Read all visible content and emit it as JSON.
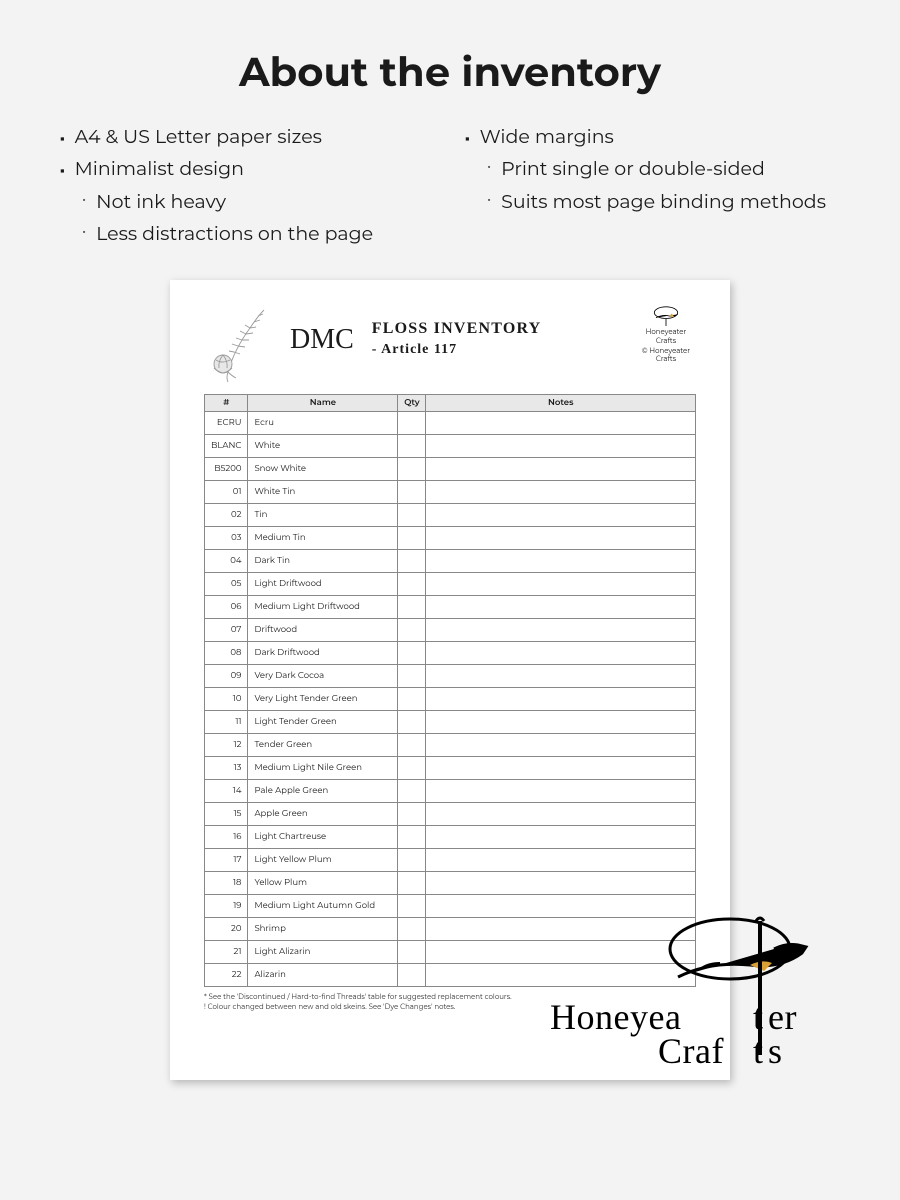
{
  "page": {
    "heading": "About the inventory",
    "background_color": "#f3f3f3"
  },
  "features": {
    "col1": {
      "item1": "A4 & US Letter paper sizes",
      "item2": "Minimalist design",
      "sub1": "Not ink heavy",
      "sub2": "Less distractions on the page"
    },
    "col2": {
      "item1": "Wide margins",
      "sub1": "Print single or double-sided",
      "sub2": "Suits most page binding methods"
    }
  },
  "document": {
    "script_brand": "DMC",
    "title": "Floss Inventory",
    "subtitle": "- Article 117",
    "brand_name_1": "Honeyeater",
    "brand_name_2": "Crafts",
    "copyright": "© Honeyeater Crafts",
    "columns": {
      "num": "#",
      "name": "Name",
      "qty": "Qty",
      "notes": "Notes"
    },
    "rows": [
      {
        "num": "ECRU",
        "name": "Ecru"
      },
      {
        "num": "BLANC",
        "name": "White"
      },
      {
        "num": "B5200",
        "name": "Snow White"
      },
      {
        "num": "01",
        "name": "White Tin"
      },
      {
        "num": "02",
        "name": "Tin"
      },
      {
        "num": "03",
        "name": "Medium Tin"
      },
      {
        "num": "04",
        "name": "Dark Tin"
      },
      {
        "num": "05",
        "name": "Light Driftwood"
      },
      {
        "num": "06",
        "name": "Medium Light Driftwood"
      },
      {
        "num": "07",
        "name": "Driftwood"
      },
      {
        "num": "08",
        "name": "Dark Driftwood"
      },
      {
        "num": "09",
        "name": "Very Dark Cocoa"
      },
      {
        "num": "10",
        "name": "Very Light Tender Green"
      },
      {
        "num": "11",
        "name": "Light Tender Green"
      },
      {
        "num": "12",
        "name": "Tender Green"
      },
      {
        "num": "13",
        "name": "Medium Light Nile Green"
      },
      {
        "num": "14",
        "name": "Pale Apple Green"
      },
      {
        "num": "15",
        "name": "Apple Green"
      },
      {
        "num": "16",
        "name": "Light Chartreuse"
      },
      {
        "num": "17",
        "name": "Light Yellow Plum"
      },
      {
        "num": "18",
        "name": "Yellow Plum"
      },
      {
        "num": "19",
        "name": "Medium Light Autumn Gold"
      },
      {
        "num": "20",
        "name": "Shrimp"
      },
      {
        "num": "21",
        "name": "Light Alizarin"
      },
      {
        "num": "22",
        "name": "Alizarin"
      }
    ],
    "footnote1": "* See the 'Discontinued / Hard-to-find Threads' table for suggested replacement colours.",
    "footnote2": "! Colour changed between new and old skeins. See 'Dye Changes' notes."
  },
  "watermark": {
    "line1": "Honeyeater",
    "line2": "Crafts"
  },
  "style": {
    "heading_fontsize": 40,
    "feature_fontsize": 19,
    "table_header_bg": "#e8e8e8",
    "table_border": "#888888",
    "table_fontsize": 8.5,
    "sheet_bg": "#ffffff",
    "sheet_shadow": "rgba(0,0,0,0.25)",
    "bird_accent": "#d9a036"
  }
}
